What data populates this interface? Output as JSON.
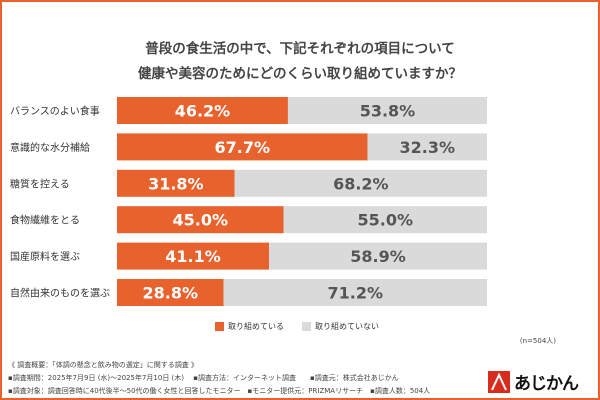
{
  "chart_data": {
    "type": "bar",
    "stacked": true,
    "orientation": "horizontal",
    "title": [
      "普段の食生活の中で、下記それぞれの項目について",
      "健康や美容のためにどのくらい取り組めていますか？"
    ],
    "categories": [
      "バランスのよい食事",
      "意識的な水分補給",
      "糖質を控える",
      "食物繊維をとる",
      "国産原料を選ぶ",
      "自然由来のものを選ぶ"
    ],
    "series": [
      {
        "name": "取り組めている",
        "color": "#e8622e",
        "values": [
          46.2,
          67.7,
          31.8,
          45.0,
          41.1,
          28.8
        ]
      },
      {
        "name": "取り組めていない",
        "color": "#dadada",
        "values": [
          53.8,
          32.3,
          68.2,
          55.0,
          58.9,
          71.2
        ]
      }
    ],
    "xlim": [
      0,
      100
    ],
    "legend": "bottom",
    "sample_note": "(n=504人)"
  },
  "footer": {
    "line1": "《 調査概要：「体調の懸念と飲み物の選定」に関する調査 》",
    "line2": "▪調査期間：2025年7月9日 (水)～2025年7月10日 (木)　 ▪調査方法：インターネット調査　　▪調査元：株式会社あじかん",
    "line3": "▪調査対象：調査回答時に40代後半～50代の働く女性と回答したモニター　▪モニター提供元：PRIZMAリサーチ　▪調査人数：504人"
  },
  "logo": {
    "text": "あじかん"
  }
}
